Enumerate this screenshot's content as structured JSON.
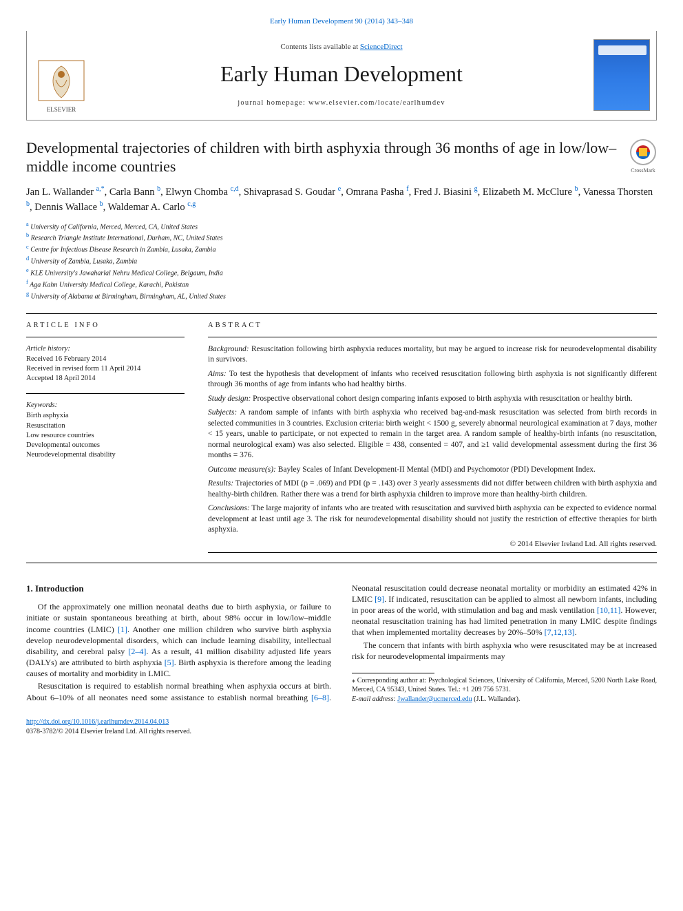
{
  "citation": {
    "journal": "Early Human Development",
    "volrange": "90 (2014) 343–348",
    "link_text": "Early Human Development 90 (2014) 343–348"
  },
  "header": {
    "contents_prefix": "Contents lists available at ",
    "contents_link": "ScienceDirect",
    "journal_title": "Early Human Development",
    "homepage_label": "journal homepage: www.elsevier.com/locate/earlhumdev",
    "elsevier_label": "ELSEVIER",
    "crossmark_label": "CrossMark"
  },
  "article": {
    "title": "Developmental trajectories of children with birth asphyxia through 36 months of age in low/low–middle income countries",
    "authors_html": "Jan L. Wallander <sup>a,*</sup>, Carla Bann <sup>b</sup>, Elwyn Chomba <sup>c,d</sup>, Shivaprasad S. Goudar <sup>e</sup>, Omrana Pasha <sup>f</sup>, Fred J. Biasini <sup>g</sup>, Elizabeth M. McClure <sup>b</sup>, Vanessa Thorsten <sup>b</sup>, Dennis Wallace <sup>b</sup>, Waldemar A. Carlo <sup>c,g</sup>"
  },
  "affiliations": [
    {
      "key": "a",
      "text": "University of California, Merced, Merced, CA, United States"
    },
    {
      "key": "b",
      "text": "Research Triangle Institute International, Durham, NC, United States"
    },
    {
      "key": "c",
      "text": "Centre for Infectious Disease Research in Zambia, Lusaka, Zambia"
    },
    {
      "key": "d",
      "text": "University of Zambia, Lusaka, Zambia"
    },
    {
      "key": "e",
      "text": "KLE University's Jawaharlal Nehru Medical College, Belgaum, India"
    },
    {
      "key": "f",
      "text": "Aga Kahn University Medical College, Karachi, Pakistan"
    },
    {
      "key": "g",
      "text": "University of Alabama at Birmingham, Birmingham, AL, United States"
    }
  ],
  "info": {
    "label": "ARTICLE INFO",
    "history_hd": "Article history:",
    "history": [
      "Received 16 February 2014",
      "Received in revised form 11 April 2014",
      "Accepted 18 April 2014"
    ],
    "keywords_hd": "Keywords:",
    "keywords": [
      "Birth asphyxia",
      "Resuscitation",
      "Low resource countries",
      "Developmental outcomes",
      "Neurodevelopmental disability"
    ]
  },
  "abstract": {
    "label": "ABSTRACT",
    "sections": [
      {
        "lbl": "Background:",
        "txt": " Resuscitation following birth asphyxia reduces mortality, but may be argued to increase risk for neurodevelopmental disability in survivors."
      },
      {
        "lbl": "Aims:",
        "txt": " To test the hypothesis that development of infants who received resuscitation following birth asphyxia is not significantly different through 36 months of age from infants who had healthy births."
      },
      {
        "lbl": "Study design:",
        "txt": " Prospective observational cohort design comparing infants exposed to birth asphyxia with resuscitation or healthy birth."
      },
      {
        "lbl": "Subjects:",
        "txt": " A random sample of infants with birth asphyxia who received bag-and-mask resuscitation was selected from birth records in selected communities in 3 countries. Exclusion criteria: birth weight < 1500 g, severely abnormal neurological examination at 7 days, mother < 15 years, unable to participate, or not expected to remain in the target area. A random sample of healthy-birth infants (no resuscitation, normal neurological exam) was also selected. Eligible = 438, consented = 407, and ≥1 valid developmental assessment during the first 36 months = 376."
      },
      {
        "lbl": "Outcome measure(s):",
        "txt": " Bayley Scales of Infant Development-II Mental (MDI) and Psychomotor (PDI) Development Index."
      },
      {
        "lbl": "Results:",
        "txt": " Trajectories of MDI (p = .069) and PDI (p = .143) over 3 yearly assessments did not differ between children with birth asphyxia and healthy-birth children. Rather there was a trend for birth asphyxia children to improve more than healthy-birth children."
      },
      {
        "lbl": "Conclusions:",
        "txt": " The large majority of infants who are treated with resuscitation and survived birth asphyxia can be expected to evidence normal development at least until age 3. The risk for neurodevelopmental disability should not justify the restriction of effective therapies for birth asphyxia."
      }
    ],
    "copyright": "© 2014 Elsevier Ireland Ltd. All rights reserved."
  },
  "body": {
    "heading": "1. Introduction",
    "p1a": "Of the approximately one million neonatal deaths due to birth asphyxia, or failure to initiate or sustain spontaneous breathing at birth, about 98% occur in low/low–middle income countries (LMIC) ",
    "r1": "[1]",
    "p1b": ". Another one million children who survive birth asphyxia develop neurodevelopmental disorders, which can include learning disability, intellectual disability, and cerebral palsy ",
    "r2": "[2–4]",
    "p1c": ". As a result, 41 million disability adjusted life years (DALYs) are attributed to birth asphyxia ",
    "r5": "[5]",
    "p2a": ". Birth asphyxia is therefore among the leading causes of mortality and morbidity in LMIC.",
    "p3a": "Resuscitation is required to establish normal breathing when asphyxia occurs at birth. About 6–10% of all neonates need some assistance to establish normal breathing ",
    "r6": "[6–8]",
    "p3b": ". Neonatal resuscitation could decrease neonatal mortality or morbidity an estimated 42% in LMIC ",
    "r9": "[9]",
    "p3c": ". If indicated, resuscitation can be applied to almost all newborn infants, including in poor areas of the world, with stimulation and bag and mask ventilation ",
    "r10": "[10,11]",
    "p3d": ". However, neonatal resuscitation training has had limited penetration in many LMIC despite findings that when implemented mortality decreases by 20%–50% ",
    "r7": "[7,12,13]",
    "p3e": ".",
    "p4a": "The concern that infants with birth asphyxia who were resuscitated may be at increased risk for neurodevelopmental impairments may"
  },
  "footnotes": {
    "corr": "⁎ Corresponding author at: Psychological Sciences, University of California, Merced, 5200 North Lake Road, Merced, CA 95343, United States. Tel.: +1 209 756 5731.",
    "email_lbl": "E-mail address: ",
    "email": "Jwallander@ucmerced.edu",
    "email_who": " (J.L. Wallander)."
  },
  "doi": {
    "url": "http://dx.doi.org/10.1016/j.earlhumdev.2014.04.013",
    "line2": "0378-3782/© 2014 Elsevier Ireland Ltd. All rights reserved."
  },
  "colors": {
    "link": "#0066cc",
    "text": "#1a1a1a",
    "rule": "#000000",
    "cover_grad_top": "#2263c7",
    "elsevier_orange": "#ff7a00"
  }
}
